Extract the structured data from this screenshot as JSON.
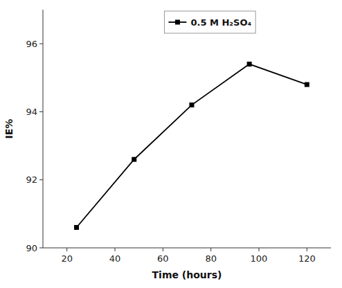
{
  "chart_data": {
    "type": "line",
    "xlabel": "Time (hours)",
    "ylabel": "IE%",
    "x": [
      24,
      48,
      72,
      96,
      120
    ],
    "series": [
      {
        "name": "0.5 M H₂SO₄",
        "color": "black",
        "marker": "square",
        "line_style": "solid",
        "values": [
          90.6,
          92.6,
          94.2,
          95.4,
          94.8
        ]
      }
    ],
    "xlim": [
      10,
      130
    ],
    "ylim": [
      90,
      97
    ],
    "xticks": [
      20,
      40,
      60,
      80,
      100,
      120
    ],
    "yticks": [
      90,
      92,
      94,
      96
    ],
    "grid": false,
    "legend": "upper center"
  }
}
